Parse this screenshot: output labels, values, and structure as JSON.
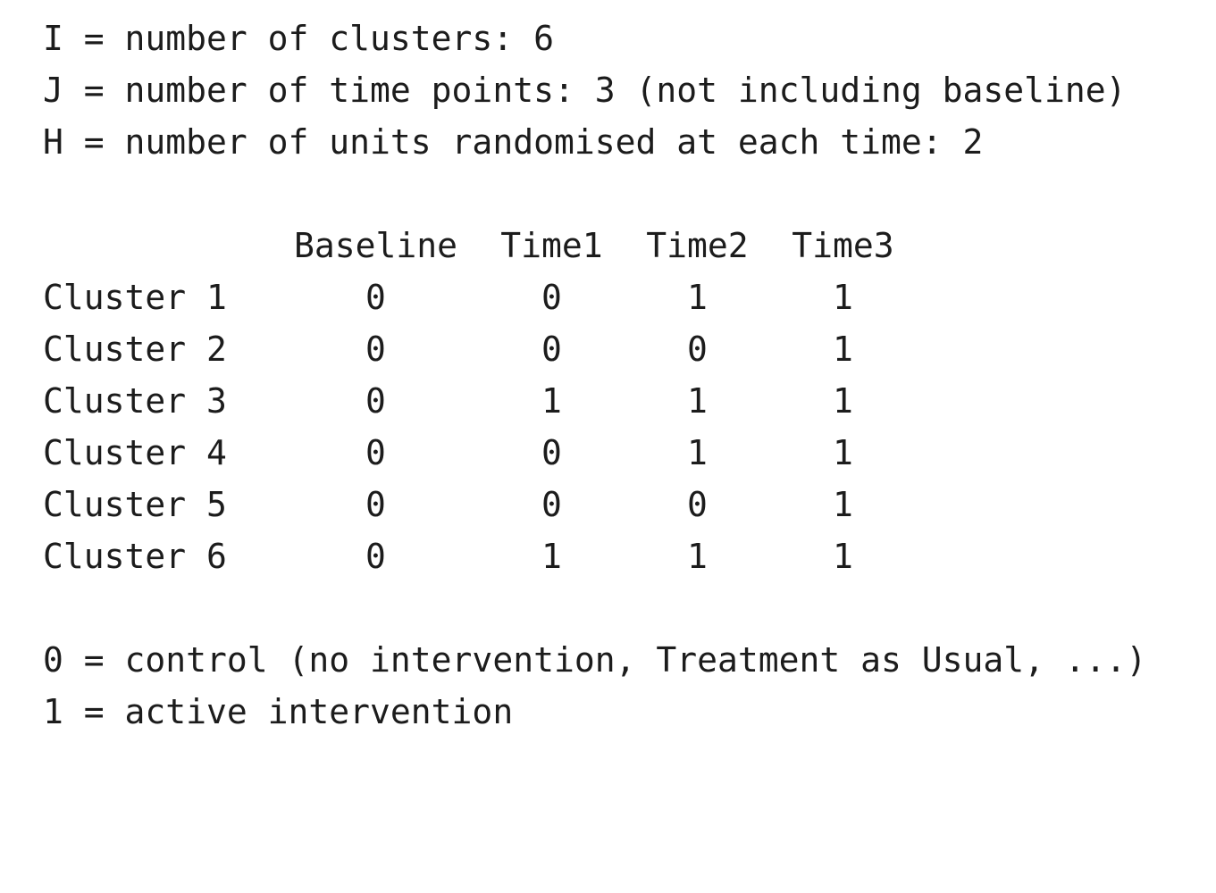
{
  "params": [
    "I = number of clusters: 6",
    "J = number of time points: 3 (not including baseline)",
    "H = number of units randomised at each time: 2"
  ],
  "table": {
    "headers": [
      "Baseline",
      "Time1",
      "Time2",
      "Time3"
    ],
    "rows": [
      {
        "label": "Cluster 1",
        "values": [
          "0",
          "0",
          "1",
          "1"
        ]
      },
      {
        "label": "Cluster 2",
        "values": [
          "0",
          "0",
          "0",
          "1"
        ]
      },
      {
        "label": "Cluster 3",
        "values": [
          "0",
          "1",
          "1",
          "1"
        ]
      },
      {
        "label": "Cluster 4",
        "values": [
          "0",
          "0",
          "1",
          "1"
        ]
      },
      {
        "label": "Cluster 5",
        "values": [
          "0",
          "0",
          "0",
          "1"
        ]
      },
      {
        "label": "Cluster 6",
        "values": [
          "0",
          "1",
          "1",
          "1"
        ]
      }
    ]
  },
  "legend": [
    "0 = control (no intervention, Treatment as Usual, ...)",
    "1 = active intervention"
  ]
}
